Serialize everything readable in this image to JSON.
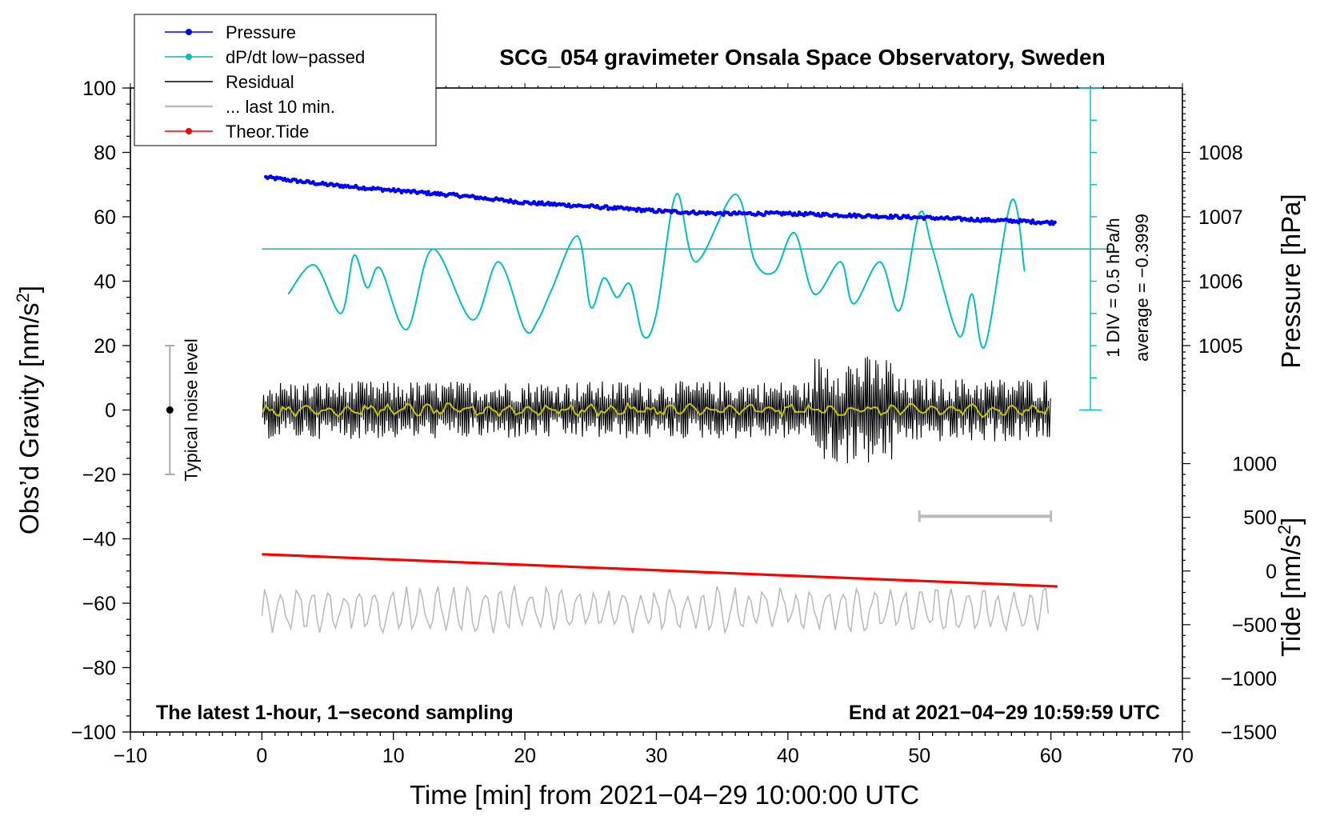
{
  "chart_data": {
    "type": "line",
    "title": "SCG_054 gravimeter Onsala Space Observatory, Sweden",
    "xlabel": "Time [min] from 2021−04−29 10:00:00 UTC",
    "ylabel_left": "Obs'd Gravity [nm/s²]",
    "ylabel_left_main": "Obs’d Gravity [nm/s",
    "ylabel_left_sup": "2",
    "ylabel_left_end": "]",
    "ylabel_right_pressure": "Pressure [hPa]",
    "ylabel_right_tide": "Tide [nm/s²]",
    "ylabel_right_tide_main": "Tide [nm/s",
    "ylabel_right_tide_sup": "2",
    "ylabel_right_tide_end": "]",
    "xlim": [
      -10,
      70
    ],
    "ylim_left": [
      -100,
      100
    ],
    "x_ticks": [
      -10,
      0,
      10,
      20,
      30,
      40,
      50,
      60,
      70
    ],
    "x_tick_labels": [
      "−10",
      "0",
      "10",
      "20",
      "30",
      "40",
      "50",
      "60",
      "70"
    ],
    "y_left_ticks": [
      100,
      80,
      60,
      40,
      20,
      0,
      -20,
      -40,
      -60,
      -80,
      -100
    ],
    "y_left_tick_labels": [
      "100",
      "80",
      "60",
      "40",
      "20",
      "0",
      "−20",
      "−40",
      "−60",
      "−80",
      "−100"
    ],
    "pressure_axis": {
      "ticks": [
        1008,
        1007,
        1006,
        1005
      ],
      "tick_labels": [
        "1008",
        "1007",
        "1006",
        "1005"
      ],
      "gravity_at_1007": 60,
      "gravity_per_hpa": 20
    },
    "tide_axis": {
      "ticks": [
        1000,
        500,
        0,
        -500,
        -1000,
        -1500
      ],
      "tick_labels": [
        "1000",
        "500",
        "0",
        "−500",
        "−1000",
        "−1500"
      ],
      "gravity_at_0": -50,
      "gravity_per_500": 16.67
    },
    "legend": [
      {
        "label": "Pressure",
        "color": "#0000ff",
        "marker": "dot"
      },
      {
        "label": "dP/dt low−passed",
        "color": "#00bfbf",
        "marker": "dot"
      },
      {
        "label": "Residual",
        "color": "#000000",
        "marker": "none"
      },
      {
        "label": "... last 10 min.",
        "color": "#bbbbbb",
        "marker": "none"
      },
      {
        "label": "Theor.Tide",
        "color": "#ff0000",
        "marker": "dot"
      }
    ],
    "series": [
      {
        "name": "Pressure",
        "axis": "pressure",
        "x": [
          0,
          5,
          10,
          15,
          20,
          25,
          30,
          35,
          40,
          45,
          50,
          55,
          58,
          60
        ],
        "y": [
          1007.62,
          1007.5,
          1007.41,
          1007.33,
          1007.22,
          1007.16,
          1007.09,
          1007.05,
          1007.05,
          1007.02,
          1006.99,
          1006.95,
          1006.93,
          1006.91
        ],
        "color": "#0000ff"
      },
      {
        "name": "dP/dt low−passed",
        "axis": "gravity",
        "x": [
          2,
          4,
          6,
          7,
          8,
          9,
          11,
          13,
          16,
          18,
          20,
          21,
          22,
          24,
          25,
          26,
          27,
          28,
          29,
          30,
          31.5,
          33,
          36,
          37.5,
          39,
          40.5,
          42,
          44,
          45,
          47,
          48.5,
          50,
          51,
          53,
          54,
          55,
          57,
          58
        ],
        "y": [
          36,
          45,
          30,
          48,
          38,
          44,
          25,
          50,
          28,
          46,
          25,
          28,
          37,
          54,
          32,
          41,
          35,
          39,
          23,
          30,
          67,
          46,
          67,
          46,
          43,
          55,
          36,
          46,
          33,
          46,
          31,
          61,
          50,
          23,
          36,
          20,
          65,
          43
        ],
        "color": "#00bfbf"
      },
      {
        "name": "Residual",
        "axis": "gravity",
        "x": [
          0,
          60
        ],
        "y_center": 0,
        "envelope": [
          {
            "x": [
              0,
              42
            ],
            "amplitude": 9
          },
          {
            "x": [
              42,
              48
            ],
            "amplitude": 17
          },
          {
            "x": [
              48,
              60
            ],
            "amplitude": 10
          }
        ],
        "color": "#000000"
      },
      {
        "name": "Residual smoothed",
        "axis": "gravity",
        "x": [
          0,
          60
        ],
        "y_center": 0,
        "amplitude": 2,
        "color": "#c8c800"
      },
      {
        "name": "Theor.Tide",
        "axis": "gravity",
        "x": [
          0,
          60.5
        ],
        "y": [
          -44.8,
          -54.8
        ],
        "color": "#ff0000"
      },
      {
        "name": "... last 10 min.",
        "axis": "gravity",
        "x": [
          0,
          60
        ],
        "y_center": -62,
        "amplitude": 8,
        "color": "#bbbbbb"
      }
    ],
    "last10_bar": {
      "x": [
        50,
        60
      ],
      "y": -33
    },
    "dpdt_reference": {
      "baseline_y": 50,
      "scale_x": 63,
      "scale_y_range": [
        0,
        100
      ],
      "label_1": "1 DIV = 0.5 hPa/h",
      "label_2": "average = −0.3999"
    },
    "noise_bar": {
      "x": -7,
      "y_range": [
        -20,
        20
      ],
      "center": 0,
      "label": "Typical noise level"
    },
    "annotations": {
      "bottom_left": "The latest 1-hour, 1−second sampling",
      "bottom_right": "End at 2021−04−29 10:59:59 UTC"
    }
  }
}
